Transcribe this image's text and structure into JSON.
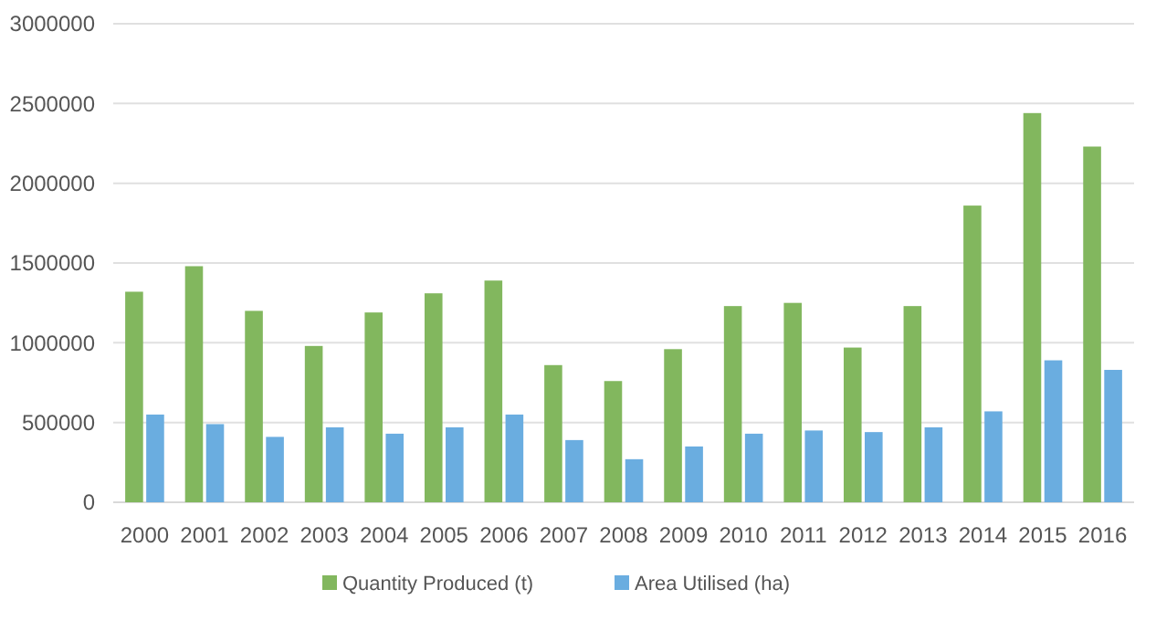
{
  "chart_data": {
    "type": "bar",
    "categories": [
      "2000",
      "2001",
      "2002",
      "2003",
      "2004",
      "2005",
      "2006",
      "2007",
      "2008",
      "2009",
      "2010",
      "2011",
      "2012",
      "2013",
      "2014",
      "2015",
      "2016"
    ],
    "series": [
      {
        "name": "Quantity Produced (t)",
        "color": "#82b75e",
        "values": [
          1320000,
          1480000,
          1200000,
          980000,
          1190000,
          1310000,
          1390000,
          860000,
          760000,
          960000,
          1230000,
          1250000,
          970000,
          1230000,
          1860000,
          2440000,
          2230000
        ]
      },
      {
        "name": "Area Utilised (ha)",
        "color": "#6aade0",
        "values": [
          550000,
          490000,
          410000,
          470000,
          430000,
          470000,
          550000,
          390000,
          270000,
          350000,
          430000,
          450000,
          440000,
          470000,
          570000,
          890000,
          830000
        ]
      }
    ],
    "ylim": [
      0,
      3000000
    ],
    "yticks": [
      0,
      500000,
      1000000,
      1500000,
      2000000,
      2500000,
      3000000
    ],
    "grid": "y",
    "legend": "bottom"
  }
}
